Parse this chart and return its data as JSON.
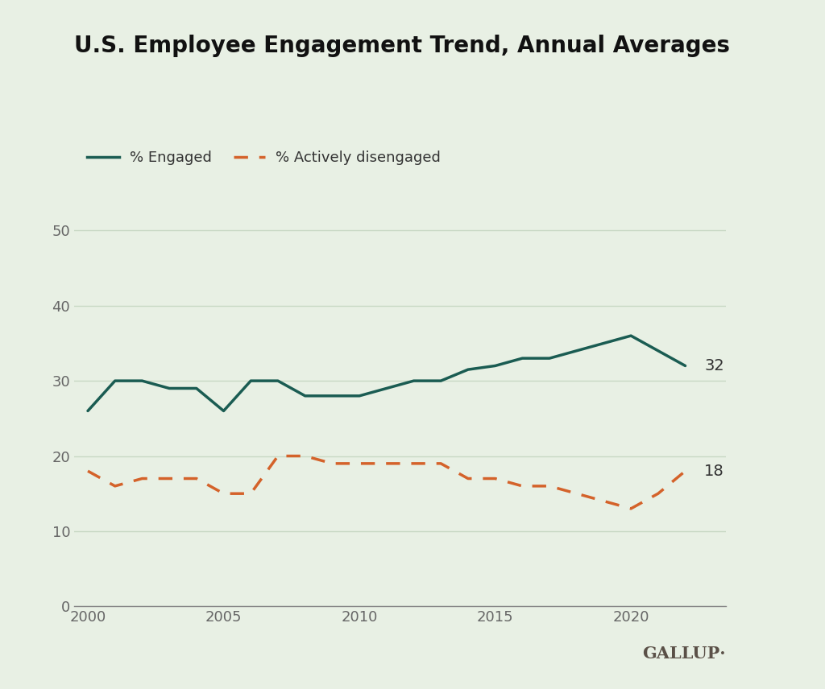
{
  "title": "U.S. Employee Engagement Trend, Annual Averages",
  "background_color": "#e8f0e4",
  "engaged_color": "#1a5c52",
  "disengaged_color": "#d4622a",
  "gallup_text_color": "#5a5047",
  "axis_label_color": "#666666",
  "grid_color": "#c8d8c4",
  "years_engaged": [
    2000,
    2001,
    2002,
    2003,
    2004,
    2005,
    2006,
    2007,
    2008,
    2009,
    2010,
    2011,
    2012,
    2013,
    2014,
    2015,
    2016,
    2017,
    2018,
    2019,
    2020,
    2021,
    2022
  ],
  "values_engaged": [
    26,
    30,
    30,
    29,
    29,
    26,
    30,
    30,
    28,
    28,
    28,
    29,
    30,
    30,
    31.5,
    32,
    33,
    33,
    34,
    35,
    36,
    34,
    32
  ],
  "years_disengaged": [
    2000,
    2001,
    2002,
    2003,
    2004,
    2005,
    2006,
    2007,
    2008,
    2009,
    2010,
    2011,
    2012,
    2013,
    2014,
    2015,
    2016,
    2017,
    2018,
    2019,
    2020,
    2021,
    2022
  ],
  "values_disengaged": [
    18,
    16,
    17,
    17,
    17,
    15,
    15,
    20,
    20,
    19,
    19,
    19,
    19,
    19,
    17,
    17,
    16,
    16,
    15,
    14,
    13,
    15,
    18
  ],
  "legend_engaged": "% Engaged",
  "legend_disengaged": "% Actively disengaged",
  "end_label_engaged": "32",
  "end_label_disengaged": "18",
  "yticks": [
    0,
    10,
    20,
    30,
    40,
    50
  ],
  "xticks": [
    2000,
    2005,
    2010,
    2015,
    2020
  ],
  "xlim": [
    1999.5,
    2023.5
  ],
  "ylim": [
    0,
    55
  ],
  "gallup_label": "GALLUP·"
}
